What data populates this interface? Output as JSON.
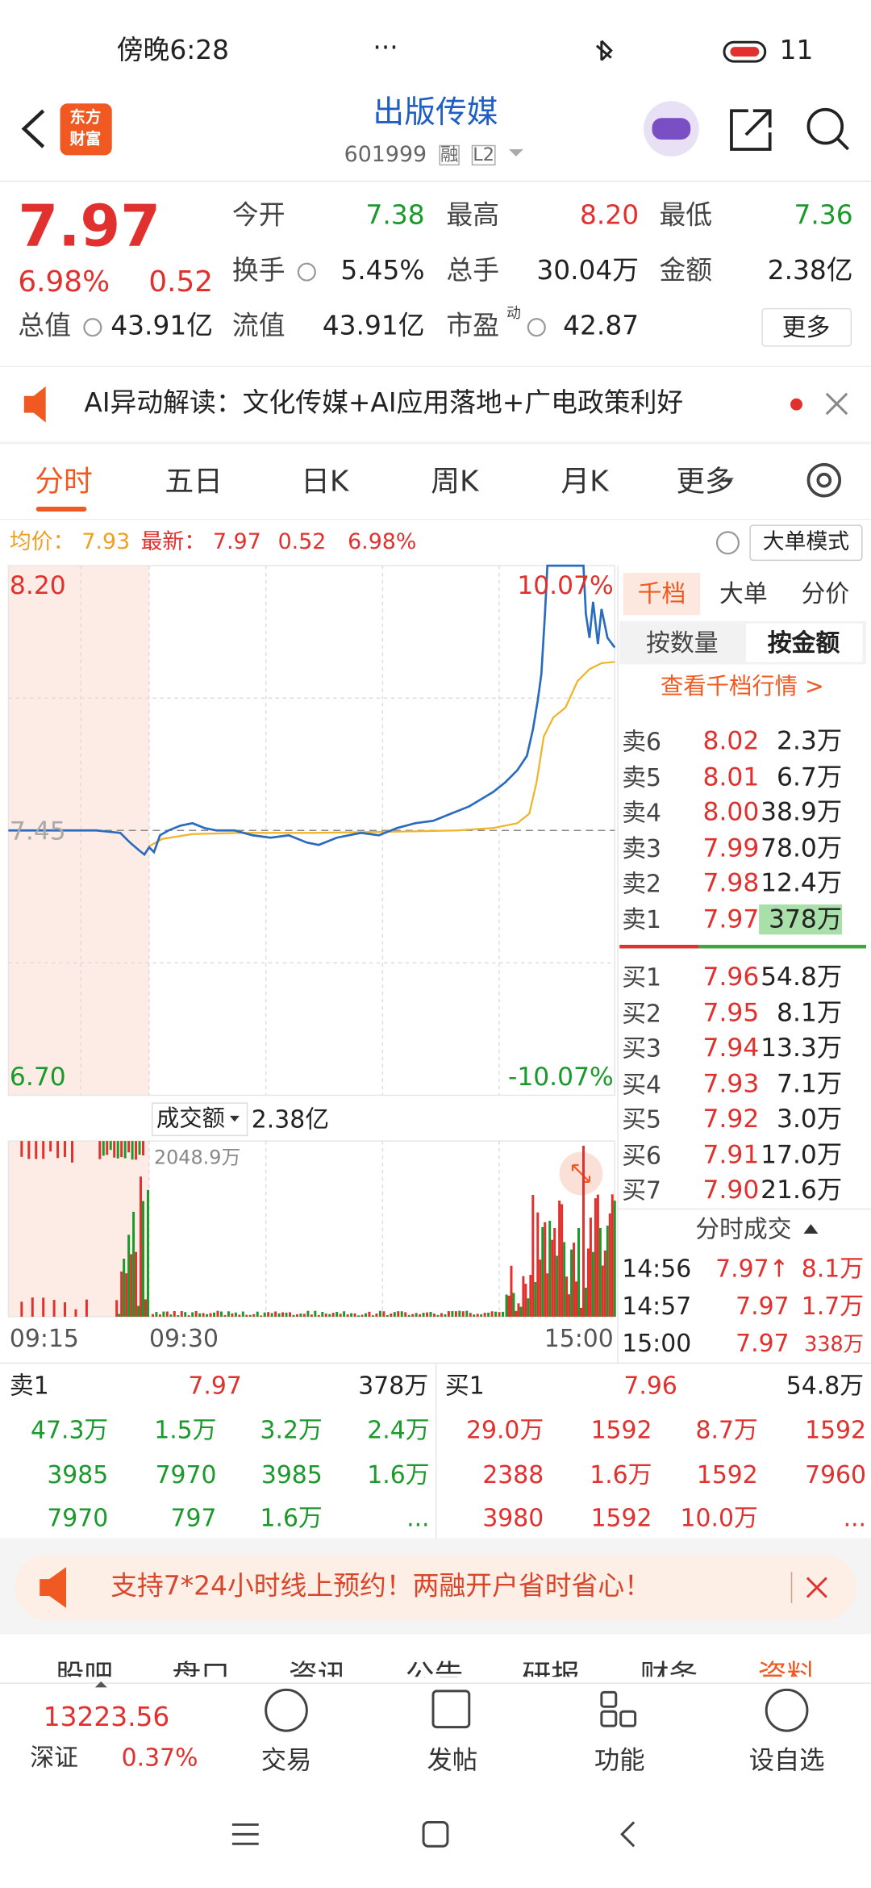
{
  "status_bar": {
    "time": "傍晚6:28",
    "dots": "···",
    "battery": "11"
  },
  "header": {
    "logo": [
      "东方",
      "财富"
    ],
    "title": "出版传媒",
    "code": "601999",
    "tags": [
      "融",
      "L2"
    ]
  },
  "quote": {
    "price": "7.97",
    "change_pct": "6.98%",
    "change": "0.52",
    "stats": [
      {
        "label": "今开",
        "value": "7.38"
      },
      {
        "label": "最高",
        "value": "8.20"
      },
      {
        "label": "最低",
        "value": "7.36"
      },
      {
        "label": "换手",
        "value": "5.45%"
      },
      {
        "label": "总手",
        "value": "30.04万"
      },
      {
        "label": "金额",
        "value": "2.38亿"
      },
      {
        "label": "总值",
        "value": "43.91亿"
      },
      {
        "label": "流值",
        "value": "43.91亿"
      },
      {
        "label": "市盈",
        "value": "42.87",
        "superscript": "动"
      }
    ],
    "more": "更多"
  },
  "alert": "AI异动解读：文化传媒+AI应用落地+广电政策利好",
  "tabs": [
    "分时",
    "五日",
    "日K",
    "周K",
    "月K",
    "更多"
  ],
  "info_bar": {
    "avg_label": "均价：",
    "avg": "7.93",
    "latest_label": "最新：",
    "latest": "7.97",
    "change": "0.52",
    "change_pct": "6.98%",
    "mode": "大单模式"
  },
  "chart": {
    "top_price": "8.20",
    "mid_price": "7.45",
    "bottom_price": "6.70",
    "top_pct": "10.07%",
    "bottom_pct": "-10.07%",
    "volume_label": "成交额",
    "volume": "2.38亿",
    "volume_max": "2048.9万",
    "times": [
      "09:15",
      "09:30",
      "15:00"
    ]
  },
  "order_book": {
    "tabs": [
      "千档",
      "大单",
      "分价"
    ],
    "subtabs": [
      "按数量",
      "按金额"
    ],
    "link": "查看千档行情 >",
    "asks": [
      {
        "label": "卖6",
        "price": "8.02",
        "volume": "2.3万"
      },
      {
        "label": "卖5",
        "price": "8.01",
        "volume": "6.7万"
      },
      {
        "label": "卖4",
        "price": "8.00",
        "volume": "38.9万"
      },
      {
        "label": "卖3",
        "price": "7.99",
        "volume": "78.0万"
      },
      {
        "label": "卖2",
        "price": "7.98",
        "volume": "12.4万"
      },
      {
        "label": "卖1",
        "price": "7.97",
        "volume": "378万"
      }
    ],
    "bids": [
      {
        "label": "买1",
        "price": "7.96",
        "volume": "54.8万"
      },
      {
        "label": "买2",
        "price": "7.95",
        "volume": "8.1万"
      },
      {
        "label": "买3",
        "price": "7.94",
        "volume": "13.3万"
      },
      {
        "label": "买4",
        "price": "7.93",
        "volume": "7.1万"
      },
      {
        "label": "买5",
        "price": "7.92",
        "volume": "3.0万"
      },
      {
        "label": "买6",
        "price": "7.91",
        "volume": "17.0万"
      },
      {
        "label": "买7",
        "price": "7.90",
        "volume": "21.6万"
      }
    ]
  },
  "trades": {
    "title": "分时成交",
    "rows": [
      {
        "time": "14:56",
        "price": "7.97↑",
        "volume": "8.1万"
      },
      {
        "time": "14:57",
        "price": "7.97",
        "volume": "1.7万"
      },
      {
        "time": "15:00",
        "price": "7.97",
        "volume": "338万"
      }
    ]
  },
  "queue": {
    "sell": {
      "label": "卖1",
      "price": "7.97",
      "volume": "378万",
      "items": [
        "47.3万",
        "1.5万",
        "3.2万",
        "2.4万",
        "3985",
        "7970",
        "3985",
        "1.6万",
        "7970",
        "797",
        "1.6万",
        "..."
      ]
    },
    "buy": {
      "label": "买1",
      "price": "7.96",
      "volume": "54.8万",
      "items": [
        "29.0万",
        "1592",
        "8.7万",
        "1592",
        "2388",
        "1.6万",
        "1592",
        "7960",
        "3980",
        "1592",
        "10.0万",
        "..."
      ]
    }
  },
  "banner": "支持7*24小时线上预约！两融开户省时省心！",
  "bottom_tabs": [
    "股吧",
    "盘口",
    "资讯",
    "公告",
    "研报",
    "财务",
    "资料"
  ],
  "nav": {
    "index_value": "13223.56",
    "index_name": "深证",
    "index_pct": "0.37%",
    "items": [
      "交易",
      "发帖",
      "功能",
      "设自选"
    ]
  }
}
